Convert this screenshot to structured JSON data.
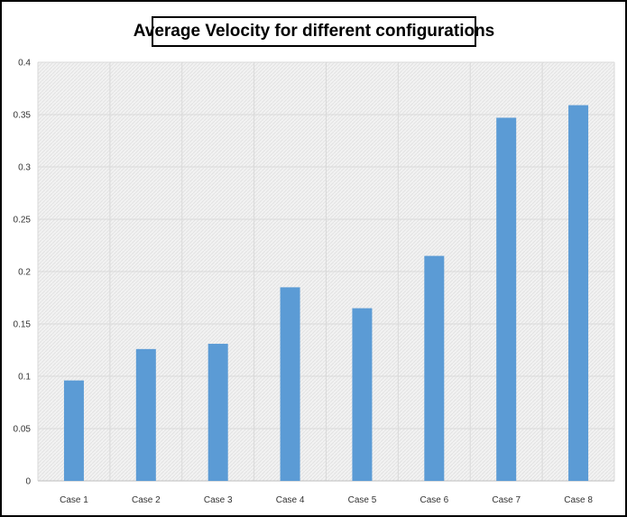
{
  "chart_data": {
    "type": "bar",
    "title": "Average Velocity for different configurations",
    "xlabel": "",
    "ylabel": "",
    "categories": [
      "Case 1",
      "Case 2",
      "Case 3",
      "Case 4",
      "Case 5",
      "Case 6",
      "Case 7",
      "Case 8"
    ],
    "values": [
      0.096,
      0.126,
      0.131,
      0.185,
      0.165,
      0.215,
      0.347,
      0.359
    ],
    "ylim": [
      0,
      0.4
    ],
    "yticks": [
      0,
      0.05,
      0.1,
      0.15,
      0.2,
      0.25,
      0.3,
      0.35,
      0.4
    ],
    "ytick_labels": [
      "0",
      "0.05",
      "0.1",
      "0.15",
      "0.2",
      "0.25",
      "0.3",
      "0.35",
      "0.4"
    ],
    "grid": true,
    "legend": "none",
    "colors": {
      "bar": "#5b9bd5",
      "grid": "#d9d9d9",
      "plot_background": "#f2f2f2"
    }
  }
}
